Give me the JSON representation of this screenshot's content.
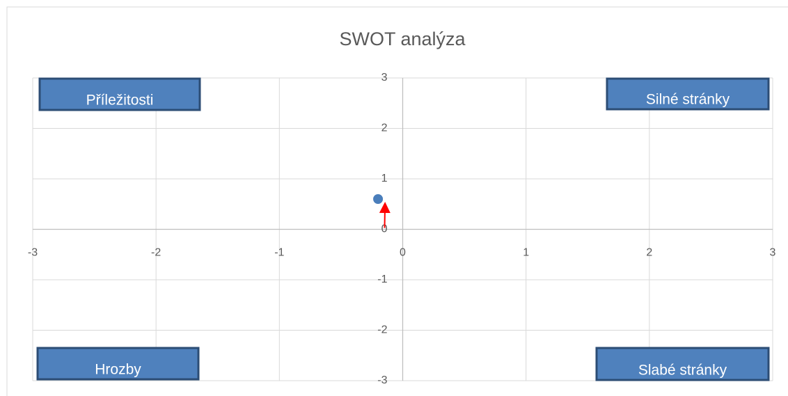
{
  "chart_data": {
    "type": "scatter",
    "title": "SWOT analýza",
    "x": [
      -0.2
    ],
    "values": [
      0.6
    ],
    "color": "#4a7ebb",
    "xlim": [
      -3,
      3
    ],
    "xticks": [
      -3,
      -2,
      -1,
      0,
      1,
      2,
      3
    ],
    "ylim": [
      -3,
      3
    ],
    "yticks": [
      -3,
      -2,
      -1,
      0,
      1,
      2,
      3
    ],
    "grid": true,
    "annotations": [
      {
        "text": "Příležitosti",
        "corner": "top-left"
      },
      {
        "text": "Silné stránky",
        "corner": "top-right"
      },
      {
        "text": "Hrozby",
        "corner": "bottom-left"
      },
      {
        "text": "Slabé stránky",
        "corner": "bottom-right"
      }
    ]
  }
}
